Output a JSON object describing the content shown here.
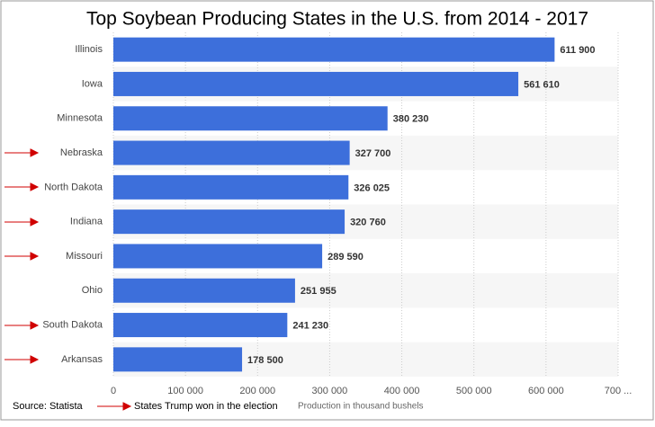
{
  "chart_data": {
    "type": "barh",
    "title": "Top Soybean Producing States in the U.S. from 2014 - 2017",
    "categories": [
      "Illinois",
      "Iowa",
      "Minnesota",
      "Nebraska",
      "North Dakota",
      "Indiana",
      "Missouri",
      "Ohio",
      "South Dakota",
      "Arkansas"
    ],
    "values": [
      611900,
      561610,
      380230,
      327700,
      326025,
      320760,
      289590,
      251955,
      241230,
      178500
    ],
    "value_labels": [
      "611 900",
      "561 610",
      "380 230",
      "327 700",
      "326 025",
      "320 760",
      "289 590",
      "251 955",
      "241 230",
      "178 500"
    ],
    "color": "#3d6fdb",
    "xlim": [
      0,
      700000
    ],
    "xticks": [
      0,
      {
        "value": 100000,
        "label": "100 000"
      },
      {
        "value": 200000,
        "label": "200 000"
      },
      {
        "value": 300000,
        "label": "300 000"
      },
      {
        "value": 400000,
        "label": "400 000"
      },
      {
        "value": 500000,
        "label": "500 000"
      },
      {
        "value": 600000,
        "label": "600 000"
      },
      {
        "value": 700000,
        "label": "700 ..."
      }
    ],
    "grid": true,
    "xlabel": "Production in thousand bushels",
    "source": "Source: Statista",
    "legend_note": "States Trump won in the election"
  }
}
